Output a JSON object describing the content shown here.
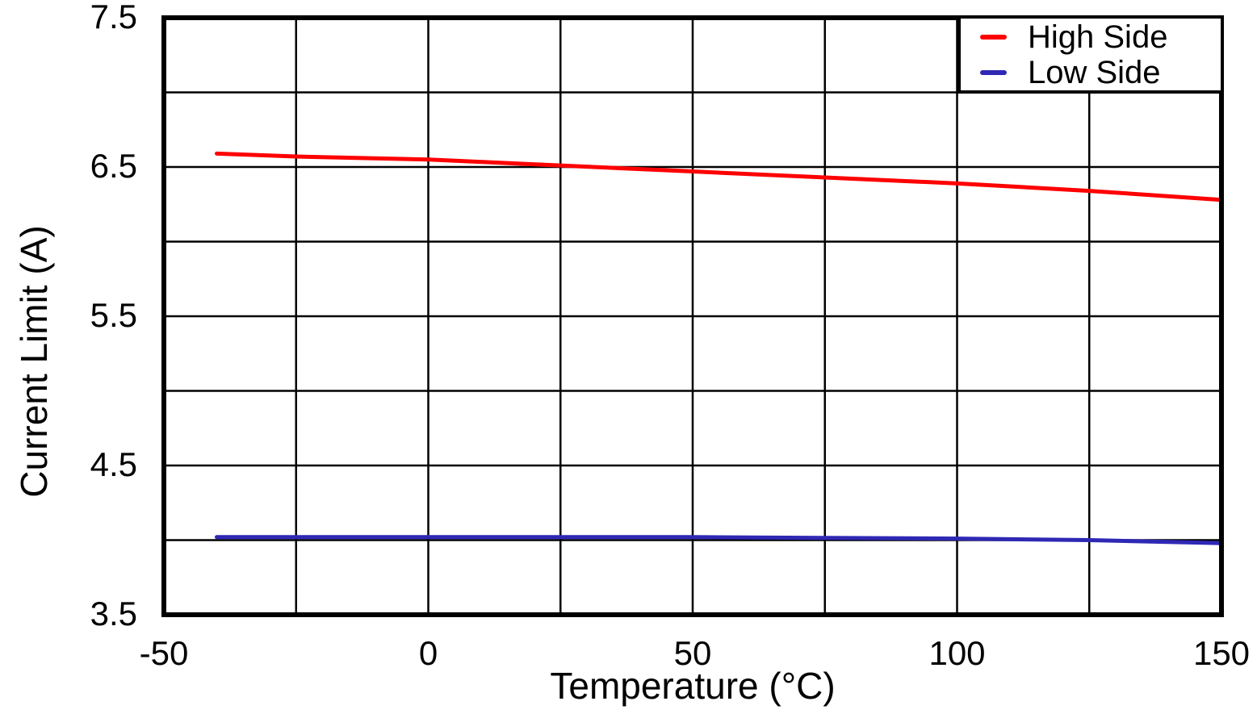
{
  "figure": {
    "background": "#ffffff",
    "frame_color": "#000000",
    "grid_color": "#000000"
  },
  "legend": {
    "position": "top-right",
    "items": [
      {
        "label": "High Side",
        "color": "#ff0000"
      },
      {
        "label": "Low Side",
        "color": "#2f28b4"
      }
    ]
  },
  "chart_data": {
    "type": "line",
    "title": "",
    "xlabel": "Temperature (°C)",
    "ylabel": "Current Limit (A)",
    "xlim": [
      -50,
      150
    ],
    "ylim": [
      3.5,
      7.5
    ],
    "x_grid_step": 25,
    "y_grid_step": 0.5,
    "xticks": [
      "-50",
      "0",
      "50",
      "100",
      "150"
    ],
    "xtick_values": [
      -50,
      0,
      50,
      100,
      150
    ],
    "yticks": [
      "3.5",
      "4.5",
      "5.5",
      "6.5",
      "7.5"
    ],
    "ytick_values": [
      3.5,
      4.5,
      5.5,
      6.5,
      7.5
    ],
    "grid": true,
    "legend_position": "top-right",
    "series": [
      {
        "name": "High Side",
        "color": "#ff0000",
        "x": [
          -40,
          -25,
          0,
          25,
          50,
          75,
          100,
          125,
          150
        ],
        "y": [
          6.59,
          6.57,
          6.55,
          6.51,
          6.47,
          6.43,
          6.39,
          6.34,
          6.28
        ]
      },
      {
        "name": "Low Side",
        "color": "#2f28b4",
        "x": [
          -40,
          -25,
          0,
          25,
          50,
          75,
          100,
          125,
          150
        ],
        "y": [
          4.02,
          4.02,
          4.02,
          4.02,
          4.02,
          4.015,
          4.01,
          4.0,
          3.98
        ]
      }
    ]
  }
}
